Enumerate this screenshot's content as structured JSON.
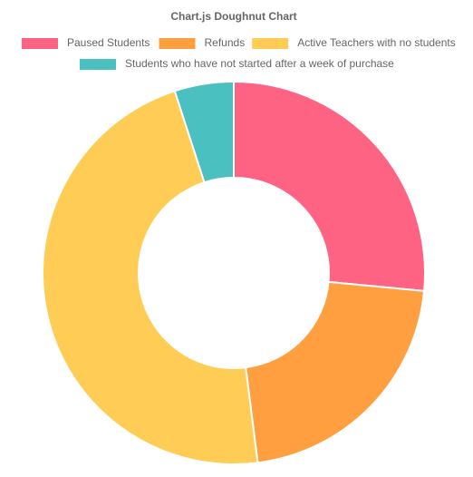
{
  "chart_data": {
    "type": "doughnut",
    "title": "Chart.js Doughnut Chart",
    "legend_position": "top",
    "categories": [
      "Paused Students",
      "Refunds",
      "Active Teachers with no students",
      "Students who have not started after a week of purchase"
    ],
    "values": [
      26.5,
      21.5,
      47,
      5
    ],
    "colors": [
      "#ff6384",
      "#ff9f40",
      "#ffcd56",
      "#4bc0c0"
    ]
  }
}
